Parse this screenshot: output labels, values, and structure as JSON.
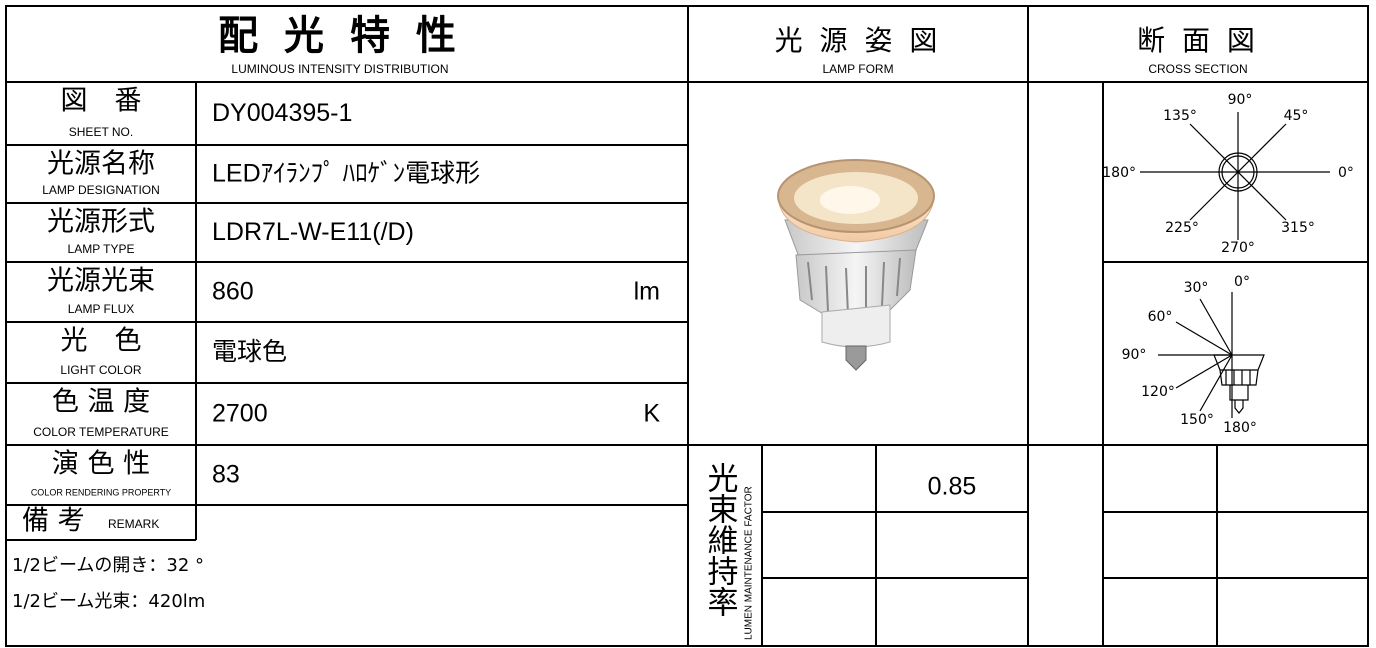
{
  "header": {
    "title": "配 光 特 性",
    "subtitle": "LUMINOUS INTENSITY DISTRIBUTION"
  },
  "lamp_form": {
    "title": "光 源 姿 図",
    "subtitle": "LAMP FORM"
  },
  "cross_section": {
    "title": "断 面 図",
    "subtitle": "CROSS SECTION",
    "top_angles": [
      "90°",
      "45°",
      "135°",
      "180°",
      "0°",
      "225°",
      "270°",
      "315°"
    ],
    "side_angles": [
      "0°",
      "30°",
      "60°",
      "90°",
      "120°",
      "150°",
      "180°"
    ]
  },
  "rows": [
    {
      "label": "図　番",
      "label_en": "SHEET NO.",
      "value": "DY004395-1"
    },
    {
      "label": "光源名称",
      "label_en": "LAMP DESIGNATION",
      "value": "LEDｱｲﾗﾝﾌﾟ ﾊﾛｹﾞﾝ電球形"
    },
    {
      "label": "光源形式",
      "label_en": "LAMP TYPE",
      "value": "LDR7L-W-E11(/D)"
    },
    {
      "label": "光源光束",
      "label_en": "LAMP FLUX",
      "value": 860,
      "unit": "lm"
    },
    {
      "label": "光　色",
      "label_en": "LIGHT COLOR",
      "value": "電球色"
    },
    {
      "label": "色 温 度",
      "label_en": "COLOR TEMPERATURE",
      "value": 2700,
      "unit": "K"
    },
    {
      "label": "演 色 性",
      "label_en": "COLOR RENDERING PROPERTY",
      "value": 83
    }
  ],
  "remark": {
    "label": "備 考",
    "label_en": "REMARK",
    "notes": [
      "1/2ビームの開き：32 °",
      "1/2ビーム光束：420lm"
    ]
  },
  "lumen_maintenance": {
    "label": "光束維持率",
    "label_en": "LUMEN MAINTENANCE FACTOR",
    "value": 0.85
  }
}
